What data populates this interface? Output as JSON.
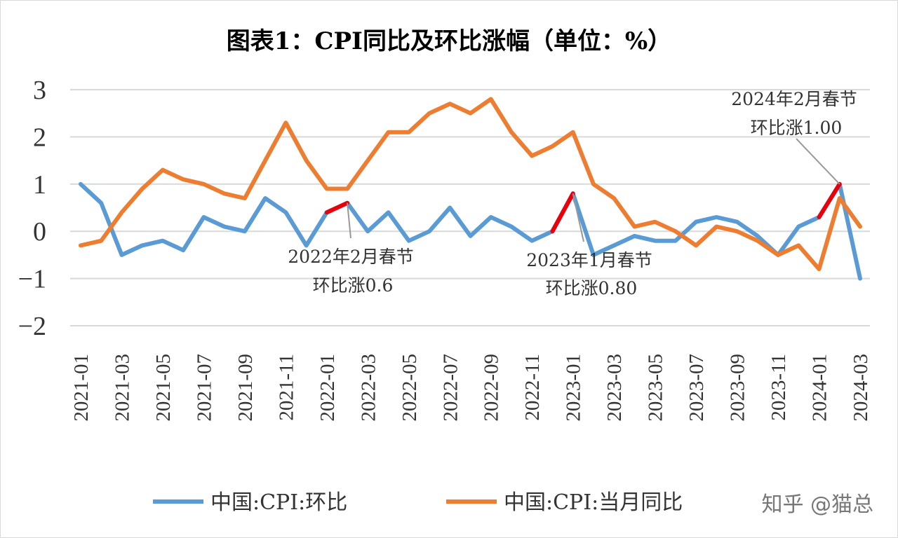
{
  "colors": {
    "mom": "#5B9BD5",
    "yoy": "#ED7D31",
    "highlight": "#E8000B",
    "grid": "#D9D9D9",
    "leader": "#999999"
  },
  "watermark": "知乎 @猫总",
  "chart_data": {
    "type": "line",
    "title": "图表1：CPI同比及环比涨幅（单位：%）",
    "ylim": [
      -2,
      3
    ],
    "yticks": [
      3,
      2,
      1,
      0,
      -1,
      -2
    ],
    "ytick_labels": [
      "3",
      "2",
      "1",
      "0",
      "−1",
      "−2"
    ],
    "grid": true,
    "legend_position": "bottom",
    "x": [
      "2021-01",
      "2021-02",
      "2021-03",
      "2021-04",
      "2021-05",
      "2021-06",
      "2021-07",
      "2021-08",
      "2021-09",
      "2021-10",
      "2021-11",
      "2021-12",
      "2022-01",
      "2022-02",
      "2022-03",
      "2022-04",
      "2022-05",
      "2022-06",
      "2022-07",
      "2022-08",
      "2022-09",
      "2022-10",
      "2022-11",
      "2022-12",
      "2023-01",
      "2023-02",
      "2023-03",
      "2023-04",
      "2023-05",
      "2023-06",
      "2023-07",
      "2023-08",
      "2023-09",
      "2023-10",
      "2023-11",
      "2023-12",
      "2024-01",
      "2024-02",
      "2024-03"
    ],
    "xtick_labels": [
      "2021-01",
      "2021-03",
      "2021-05",
      "2021-07",
      "2021-09",
      "2021-11",
      "2022-01",
      "2022-03",
      "2022-05",
      "2022-07",
      "2022-09",
      "2022-11",
      "2023-01",
      "2023-03",
      "2023-05",
      "2023-07",
      "2023-09",
      "2023-11",
      "2024-01",
      "2024-03"
    ],
    "series": [
      {
        "name": "中国:CPI:环比",
        "color": "#5B9BD5",
        "values": [
          1.0,
          0.6,
          -0.5,
          -0.3,
          -0.2,
          -0.4,
          0.3,
          0.1,
          0.0,
          0.7,
          0.4,
          -0.3,
          0.4,
          0.6,
          0.0,
          0.4,
          -0.2,
          0.0,
          0.5,
          -0.1,
          0.3,
          0.1,
          -0.2,
          0.0,
          0.8,
          -0.5,
          -0.3,
          -0.1,
          -0.2,
          -0.2,
          0.2,
          0.3,
          0.2,
          -0.1,
          -0.5,
          0.1,
          0.3,
          1.0,
          -1.0
        ]
      },
      {
        "name": "中国:CPI:当月同比",
        "color": "#ED7D31",
        "values": [
          -0.3,
          -0.2,
          0.4,
          0.9,
          1.3,
          1.1,
          1.0,
          0.8,
          0.7,
          1.5,
          2.3,
          1.5,
          0.9,
          0.9,
          1.5,
          2.1,
          2.1,
          2.5,
          2.7,
          2.5,
          2.8,
          2.1,
          1.6,
          1.8,
          2.1,
          1.0,
          0.7,
          0.1,
          0.2,
          0.0,
          -0.3,
          0.1,
          0.0,
          -0.2,
          -0.5,
          -0.3,
          -0.8,
          0.7,
          0.1
        ]
      }
    ],
    "highlights": [
      {
        "from": "2022-01",
        "to": "2022-02"
      },
      {
        "from": "2022-12",
        "to": "2023-01"
      },
      {
        "from": "2024-01",
        "to": "2024-02"
      }
    ],
    "annotations": [
      {
        "id": "a2022",
        "point": "2022-02",
        "lines": [
          "2022年2月春节",
          "环比涨0.6"
        ]
      },
      {
        "id": "a2023",
        "point": "2023-01",
        "lines": [
          "2023年1月春节",
          "环比涨0.80"
        ]
      },
      {
        "id": "a2024",
        "point": "2024-02",
        "lines": [
          "2024年2月春节",
          "环比涨1.00"
        ]
      }
    ]
  }
}
